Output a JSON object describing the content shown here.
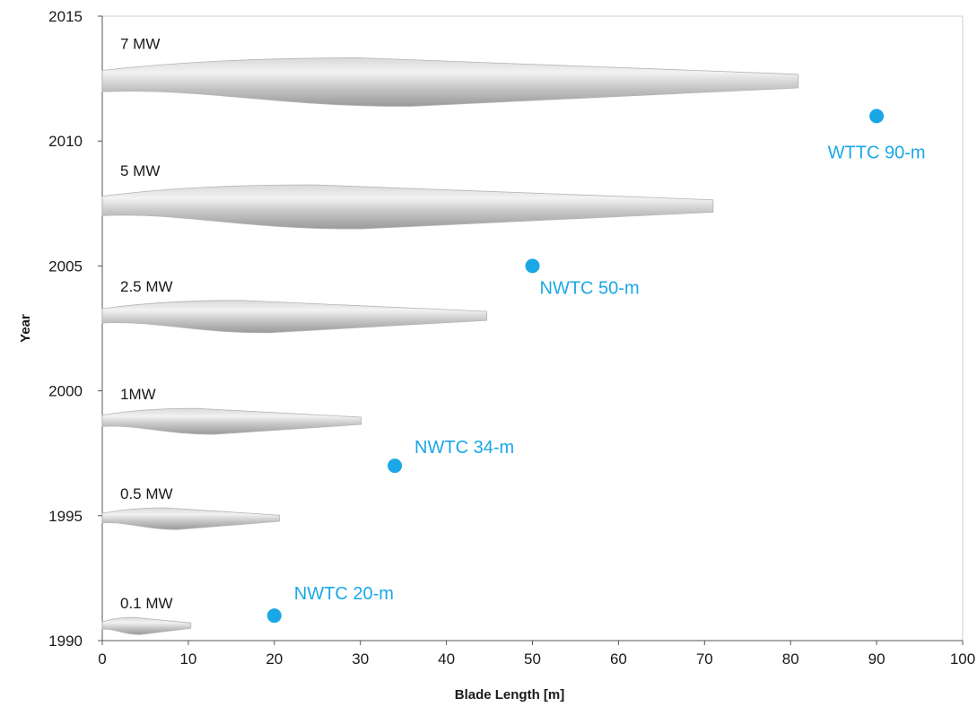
{
  "chart_data": {
    "type": "scatter",
    "xlabel": "Blade Length [m]",
    "ylabel": "Year",
    "xlim": [
      0,
      100
    ],
    "ylim": [
      1990,
      2015
    ],
    "x_ticks": [
      0,
      10,
      20,
      30,
      40,
      50,
      60,
      70,
      80,
      90,
      100
    ],
    "y_ticks": [
      1990,
      1995,
      2000,
      2005,
      2010,
      2015
    ],
    "grid": false,
    "point_color": "#1aa7e6",
    "blade_color": "#c4c4c4",
    "blades": [
      {
        "label": "0.1 MW",
        "year": 1990.6,
        "length": 10.3,
        "max_chord_at": 2.5
      },
      {
        "label": "0.5 MW",
        "year": 1994.9,
        "length": 20.6,
        "max_chord_at": 5
      },
      {
        "label": "1MW",
        "year": 1998.8,
        "length": 30.1,
        "max_chord_at": 7.5
      },
      {
        "label": "2.5 MW",
        "year": 2003.0,
        "length": 44.7,
        "max_chord_at": 11
      },
      {
        "label": "5 MW",
        "year": 2007.4,
        "length": 71.0,
        "max_chord_at": 16.5
      },
      {
        "label": "7 MW",
        "year": 2012.4,
        "length": 80.9,
        "max_chord_at": 21
      }
    ],
    "points": [
      {
        "label": "NWTC 20-m",
        "x": 20,
        "y": 1991
      },
      {
        "label": "NWTC 34-m",
        "x": 34,
        "y": 1997
      },
      {
        "label": "NWTC 50-m",
        "x": 50,
        "y": 2005
      },
      {
        "label": "WTTC 90-m",
        "x": 90,
        "y": 2011
      }
    ]
  }
}
